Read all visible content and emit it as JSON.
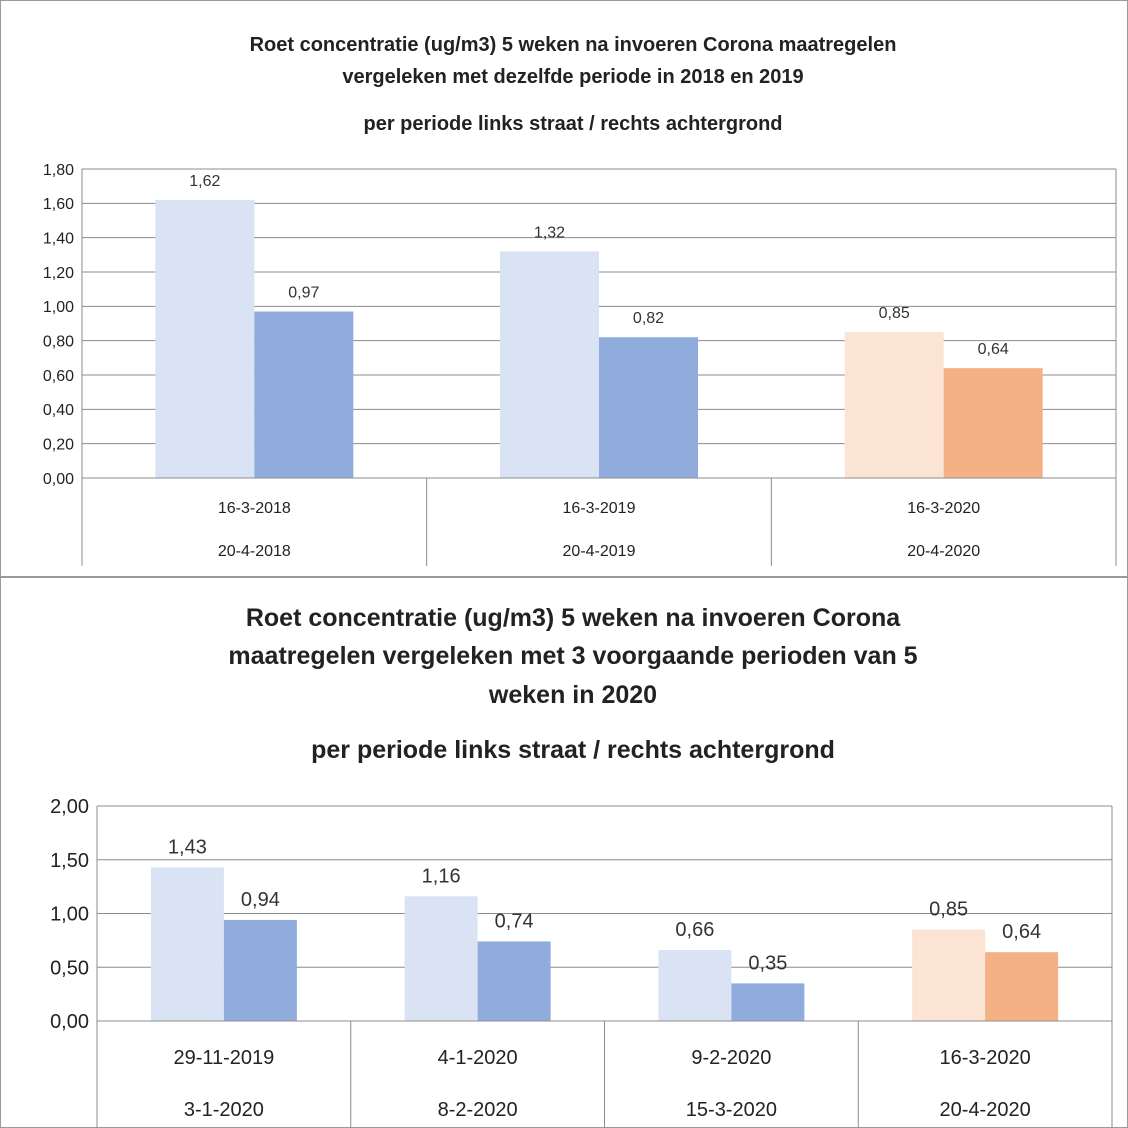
{
  "charts": [
    {
      "type": "bar",
      "title_lines": [
        "Roet concentratie (ug/m3) 5 weken na invoeren Corona maatregelen",
        "vergeleken met dezelfde periode in 2018 en 2019"
      ],
      "subtitle": "per periode links straat / rechts achtergrond",
      "categories": [
        {
          "line1": "16-3-2018",
          "line2": "20-4-2018"
        },
        {
          "line1": "16-3-2019",
          "line2": "20-4-2019"
        },
        {
          "line1": "16-3-2020",
          "line2": "20-4-2020"
        }
      ],
      "series": [
        {
          "values": [
            1.62,
            1.32,
            0.85
          ],
          "labels": [
            "1,62",
            "1,32",
            "0,85"
          ]
        },
        {
          "values": [
            0.97,
            0.82,
            0.64
          ],
          "labels": [
            "0,97",
            "0,82",
            "0,64"
          ]
        }
      ],
      "bar_colors": [
        [
          "#d9e3f3",
          "#90acdd"
        ],
        [
          "#d9e3f3",
          "#90acdd"
        ],
        [
          "#fbe4d4",
          "#f4b183"
        ]
      ],
      "ylim": [
        0,
        1.8
      ],
      "yticks": [
        {
          "value": 0,
          "label": "0,00"
        },
        {
          "value": 0.2,
          "label": "0,20"
        },
        {
          "value": 0.4,
          "label": "0,40"
        },
        {
          "value": 0.6,
          "label": "0,60"
        },
        {
          "value": 0.8,
          "label": "0,80"
        },
        {
          "value": 1.0,
          "label": "1,00"
        },
        {
          "value": 1.2,
          "label": "1,20"
        },
        {
          "value": 1.4,
          "label": "1,40"
        },
        {
          "value": 1.6,
          "label": "1,60"
        },
        {
          "value": 1.8,
          "label": "1,80"
        }
      ],
      "grid": true
    },
    {
      "type": "bar",
      "title_lines": [
        "Roet concentratie (ug/m3) 5 weken na invoeren Corona",
        "maatregelen vergeleken met 3 voorgaande perioden van 5",
        "weken in 2020"
      ],
      "subtitle": "per periode links straat / rechts achtergrond",
      "categories": [
        {
          "line1": "29-11-2019",
          "line2": "3-1-2020"
        },
        {
          "line1": "4-1-2020",
          "line2": "8-2-2020"
        },
        {
          "line1": "9-2-2020",
          "line2": "15-3-2020"
        },
        {
          "line1": "16-3-2020",
          "line2": "20-4-2020"
        }
      ],
      "series": [
        {
          "values": [
            1.43,
            1.16,
            0.66,
            0.85
          ],
          "labels": [
            "1,43",
            "1,16",
            "0,66",
            "0,85"
          ]
        },
        {
          "values": [
            0.94,
            0.74,
            0.35,
            0.64
          ],
          "labels": [
            "0,94",
            "0,74",
            "0,35",
            "0,64"
          ]
        }
      ],
      "bar_colors": [
        [
          "#d9e3f3",
          "#90acdd"
        ],
        [
          "#d9e3f3",
          "#90acdd"
        ],
        [
          "#d9e3f3",
          "#90acdd"
        ],
        [
          "#fbe4d4",
          "#f4b183"
        ]
      ],
      "ylim": [
        0,
        2.0
      ],
      "yticks": [
        {
          "value": 0,
          "label": "0,00"
        },
        {
          "value": 0.5,
          "label": "0,50"
        },
        {
          "value": 1.0,
          "label": "1,00"
        },
        {
          "value": 1.5,
          "label": "1,50"
        },
        {
          "value": 2.0,
          "label": "2,00"
        }
      ],
      "grid": true
    }
  ],
  "colors": {
    "gridline": "#8c8c8c",
    "frame": "#9a9a9a",
    "text": "#222222"
  }
}
